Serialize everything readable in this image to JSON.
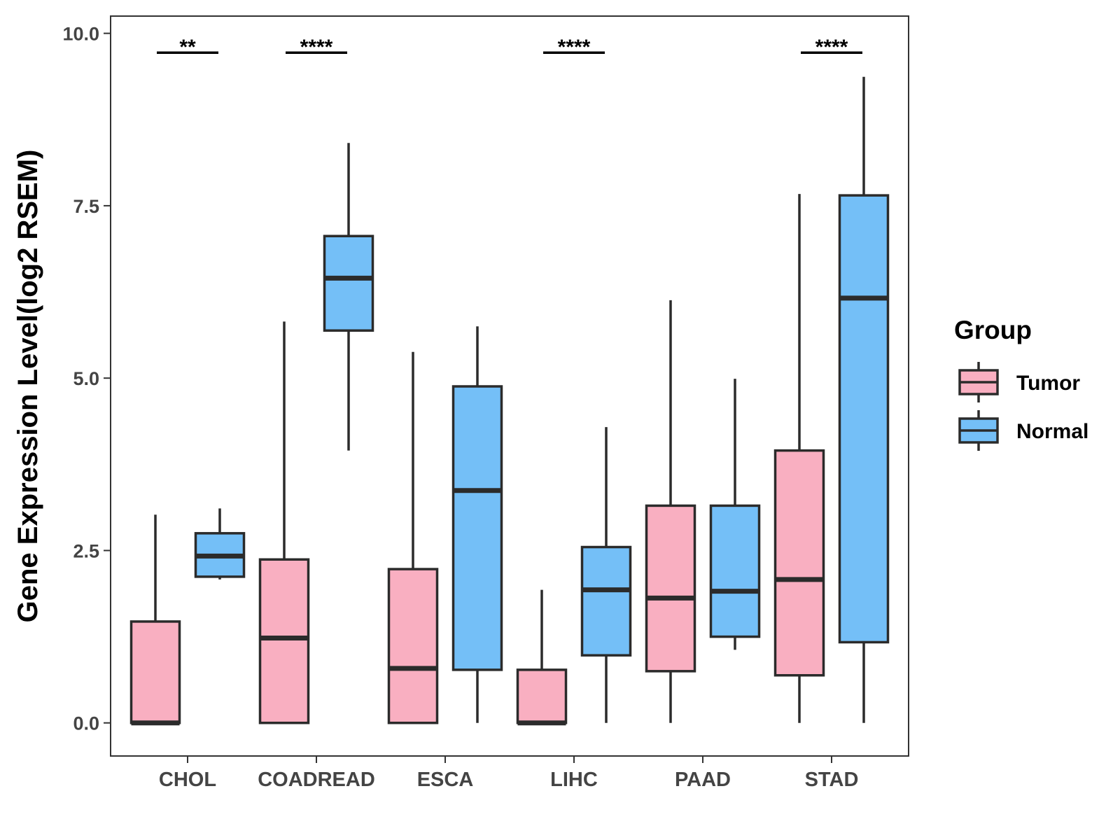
{
  "chart_data": {
    "type": "boxplot",
    "title": "",
    "xlabel": "",
    "ylabel": "Gene Expression Level(log2 RSEM)",
    "ylim": [
      -0.48,
      10.25
    ],
    "yticks": [
      0.0,
      2.5,
      5.0,
      7.5,
      10.0
    ],
    "ytick_labels": [
      "0.0",
      "2.5",
      "5.0",
      "7.5",
      "10.0"
    ],
    "categories": [
      "CHOL",
      "COADREAD",
      "ESCA",
      "LIHC",
      "PAAD",
      "STAD"
    ],
    "series": [
      {
        "name": "Tumor",
        "color": "#F9AFC1",
        "boxes": [
          {
            "min": 0.0,
            "q1": 0.0,
            "median": 0.0,
            "q3": 1.47,
            "max": 3.02
          },
          {
            "min": 0.0,
            "q1": 0.0,
            "median": 1.23,
            "q3": 2.37,
            "max": 5.82
          },
          {
            "min": 0.0,
            "q1": 0.0,
            "median": 0.79,
            "q3": 2.23,
            "max": 5.38
          },
          {
            "min": 0.0,
            "q1": 0.0,
            "median": 0.0,
            "q3": 0.77,
            "max": 1.93
          },
          {
            "min": 0.0,
            "q1": 0.75,
            "median": 1.81,
            "q3": 3.15,
            "max": 6.13
          },
          {
            "min": 0.0,
            "q1": 0.69,
            "median": 2.08,
            "q3": 3.95,
            "max": 7.67
          }
        ]
      },
      {
        "name": "Normal",
        "color": "#74BFF7",
        "boxes": [
          {
            "min": 2.08,
            "q1": 2.12,
            "median": 2.42,
            "q3": 2.75,
            "max": 3.11
          },
          {
            "min": 3.95,
            "q1": 5.69,
            "median": 6.45,
            "q3": 7.06,
            "max": 8.41
          },
          {
            "min": 0.0,
            "q1": 0.77,
            "median": 3.37,
            "q3": 4.88,
            "max": 5.75
          },
          {
            "min": 0.0,
            "q1": 0.98,
            "median": 1.93,
            "q3": 2.55,
            "max": 4.29
          },
          {
            "min": 1.06,
            "q1": 1.25,
            "median": 1.91,
            "q3": 3.15,
            "max": 4.99
          },
          {
            "min": 0.0,
            "q1": 1.17,
            "median": 6.16,
            "q3": 7.65,
            "max": 9.37
          }
        ]
      }
    ],
    "significance": [
      {
        "category": "CHOL",
        "label": "**",
        "y": 9.72
      },
      {
        "category": "COADREAD",
        "label": "****",
        "y": 9.72
      },
      {
        "category": "LIHC",
        "label": "****",
        "y": 9.72
      },
      {
        "category": "STAD",
        "label": "****",
        "y": 9.72
      }
    ],
    "legend": {
      "title": "Group",
      "position": "right",
      "entries": [
        "Tumor",
        "Normal"
      ]
    },
    "grid": false
  }
}
